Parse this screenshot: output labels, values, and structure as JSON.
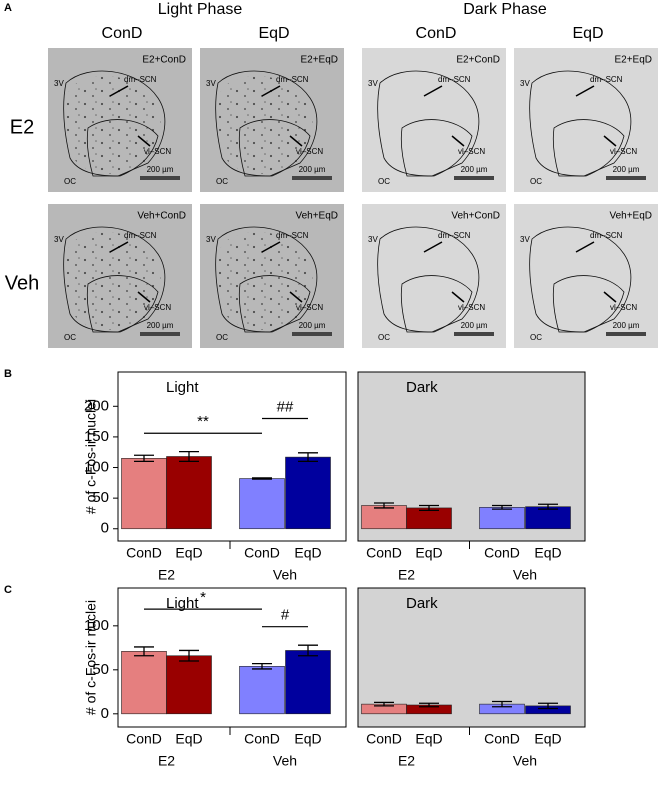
{
  "panel_a": {
    "label": "A",
    "phases": [
      "Light Phase",
      "Dark Phase"
    ],
    "columns": [
      "ConD",
      "EqD",
      "ConD",
      "EqD"
    ],
    "rows": [
      "E2",
      "Veh"
    ],
    "images": [
      [
        "E2+ConD",
        "E2+EqD",
        "E2+ConD",
        "E2+EqD"
      ],
      [
        "Veh+ConD",
        "Veh+EqD",
        "Veh+ConD",
        "Veh+EqD"
      ]
    ],
    "labels": {
      "ventricle": "3V",
      "dorsomedial": "dm–SCN",
      "ventrolateral": "vl–SCN",
      "chiasm": "OC",
      "scale": "200 µm"
    }
  },
  "chart_data": [
    {
      "type": "bar",
      "panel": "B",
      "title": "Light",
      "y_label": "# of c-Fos-ir nuclei",
      "background": "#ffffff",
      "categories": [
        "ConD",
        "EqD",
        "ConD",
        "EqD"
      ],
      "groups": [
        "E2",
        "Veh"
      ],
      "values": [
        115,
        118,
        82,
        117
      ],
      "errors": [
        5,
        8,
        1,
        7
      ],
      "colors": [
        "#e57f7f",
        "#990000",
        "#8080ff",
        "#00009e"
      ],
      "ylim": [
        -20,
        256
      ],
      "yticks": [
        0,
        50,
        100,
        150,
        200
      ],
      "annotations": [
        {
          "text": "**",
          "y": 156
        },
        {
          "text": "##",
          "y": 180
        }
      ]
    },
    {
      "type": "bar",
      "title": "Dark",
      "background": "#d3d3d3",
      "categories": [
        "ConD",
        "EqD",
        "ConD",
        "EqD"
      ],
      "groups": [
        "E2",
        "Veh"
      ],
      "values": [
        38,
        34,
        35,
        36
      ],
      "errors": [
        4,
        4,
        3,
        4
      ],
      "colors": [
        "#e57f7f",
        "#990000",
        "#8080ff",
        "#00009e"
      ],
      "ylim": [
        -20,
        256
      ]
    },
    {
      "type": "bar",
      "panel": "C",
      "title": "Light",
      "y_label": "# of c-Fos-ir nuclei",
      "background": "#ffffff",
      "categories": [
        "ConD",
        "EqD",
        "ConD",
        "EqD"
      ],
      "groups": [
        "E2",
        "Veh"
      ],
      "values": [
        71,
        66,
        54,
        72
      ],
      "errors": [
        5,
        6,
        3,
        6
      ],
      "colors": [
        "#e57f7f",
        "#990000",
        "#8080ff",
        "#00009e"
      ],
      "ylim": [
        -15,
        143
      ],
      "yticks": [
        0,
        50,
        100
      ],
      "annotations": [
        {
          "text": "*",
          "y": 119
        },
        {
          "text": "#",
          "y": 99
        }
      ]
    },
    {
      "type": "bar",
      "title": "Dark",
      "background": "#d3d3d3",
      "categories": [
        "ConD",
        "EqD",
        "ConD",
        "EqD"
      ],
      "groups": [
        "E2",
        "Veh"
      ],
      "values": [
        11,
        10,
        11,
        9
      ],
      "errors": [
        2,
        2,
        3,
        3
      ],
      "colors": [
        "#e57f7f",
        "#990000",
        "#8080ff",
        "#00009e"
      ],
      "ylim": [
        -15,
        143
      ]
    }
  ]
}
